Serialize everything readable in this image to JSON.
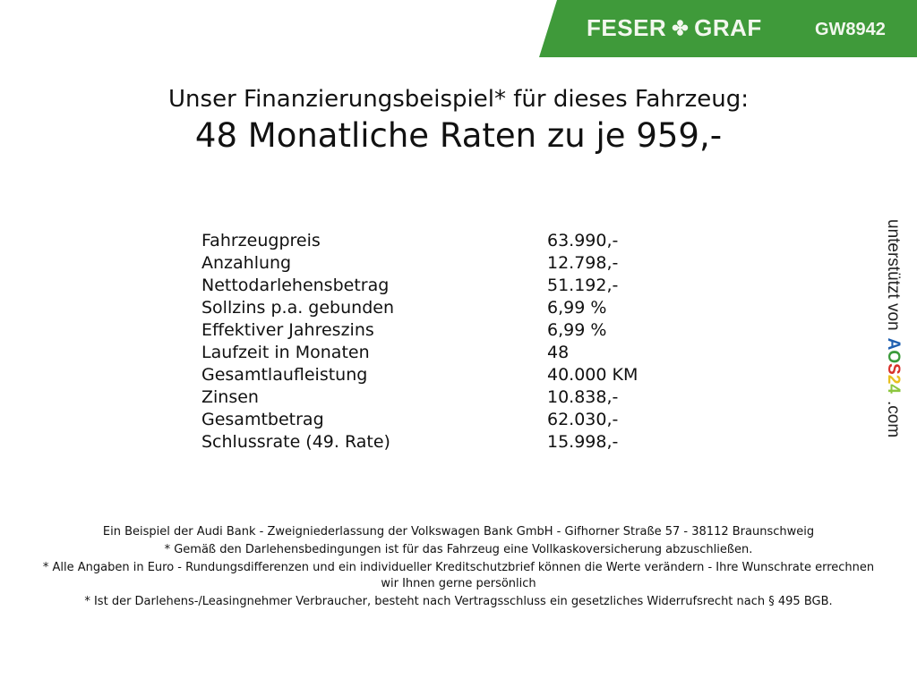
{
  "header": {
    "brand": "FESER",
    "brand2": "GRAF",
    "logo_icon": "clover-icon",
    "code": "GW8942",
    "banner_color": "#3f9a3a"
  },
  "title": {
    "line1": "Unser Finanzierungsbeispiel* für dieses Fahrzeug:",
    "line2": "48 Monatliche Raten zu je 959,-"
  },
  "rows": [
    {
      "label": "Fahrzeugpreis",
      "value": "63.990,-"
    },
    {
      "label": "Anzahlung",
      "value": "12.798,-"
    },
    {
      "label": "Nettodarlehensbetrag",
      "value": "51.192,-"
    },
    {
      "label": "Sollzins p.a. gebunden",
      "value": "6,99 %"
    },
    {
      "label": "Effektiver Jahreszins",
      "value": "6,99 %"
    },
    {
      "label": "Laufzeit in Monaten",
      "value": "48"
    },
    {
      "label": "Gesamtlaufleistung",
      "value": "40.000 KM"
    },
    {
      "label": "Zinsen",
      "value": "10.838,-"
    },
    {
      "label": "Gesamtbetrag",
      "value": "62.030,-"
    },
    {
      "label": "Schlussrate (49. Rate)",
      "value": "15.998,-"
    }
  ],
  "footer": [
    "Ein Beispiel der Audi Bank - Zweigniederlassung der Volkswagen Bank GmbH - Gifhorner Straße 57 - 38112 Braunschweig",
    "* Gemäß den Darlehensbedingungen ist für das Fahrzeug eine Vollkaskoversicherung abzuschließen.",
    "* Alle Angaben in Euro - Rundungsdifferenzen und ein individueller Kreditschutzbrief können die Werte verändern - Ihre Wunschrate errechnen wir Ihnen gerne persönlich",
    "* Ist der Darlehens-/Leasingnehmer Verbraucher, besteht nach Vertragsschluss ein gesetzliches Widerrufsrecht nach § 495 BGB."
  ],
  "side": {
    "prefix": "unterstützt von",
    "logo": [
      "A",
      "O",
      "S",
      "2",
      "4"
    ],
    "logo_colors": [
      "#1f5fb0",
      "#3a9a3a",
      "#d8322a",
      "#e8c020",
      "#8cc63f"
    ],
    "suffix": ".com"
  }
}
